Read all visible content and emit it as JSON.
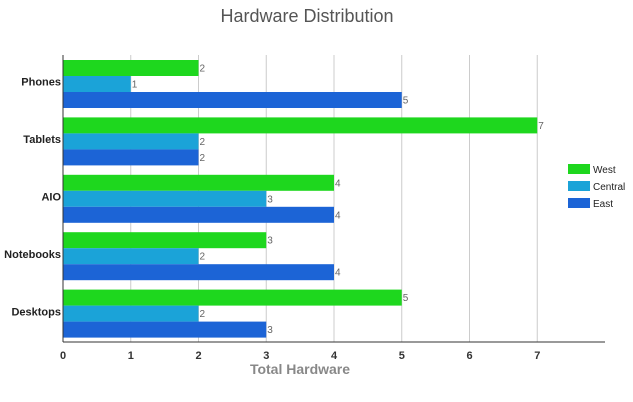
{
  "chart_data": {
    "type": "bar",
    "orientation": "horizontal",
    "title": "Hardware Distribution",
    "xlabel": "Total Hardware",
    "ylabel": "",
    "xlim": [
      0,
      8
    ],
    "x_ticks": [
      "0",
      "1",
      "2",
      "3",
      "4",
      "5",
      "6",
      "7"
    ],
    "grid": true,
    "legend_position": "right",
    "categories": [
      "Phones",
      "Tablets",
      "AIO",
      "Notebooks",
      "Desktops"
    ],
    "series": [
      {
        "name": "West",
        "color": "#1ed71e",
        "values": [
          2,
          7,
          4,
          3,
          5
        ]
      },
      {
        "name": "Central",
        "color": "#1ba3d8",
        "values": [
          1,
          2,
          3,
          2,
          2
        ]
      },
      {
        "name": "East",
        "color": "#1c64d6",
        "values": [
          5,
          2,
          4,
          4,
          3
        ]
      }
    ]
  }
}
